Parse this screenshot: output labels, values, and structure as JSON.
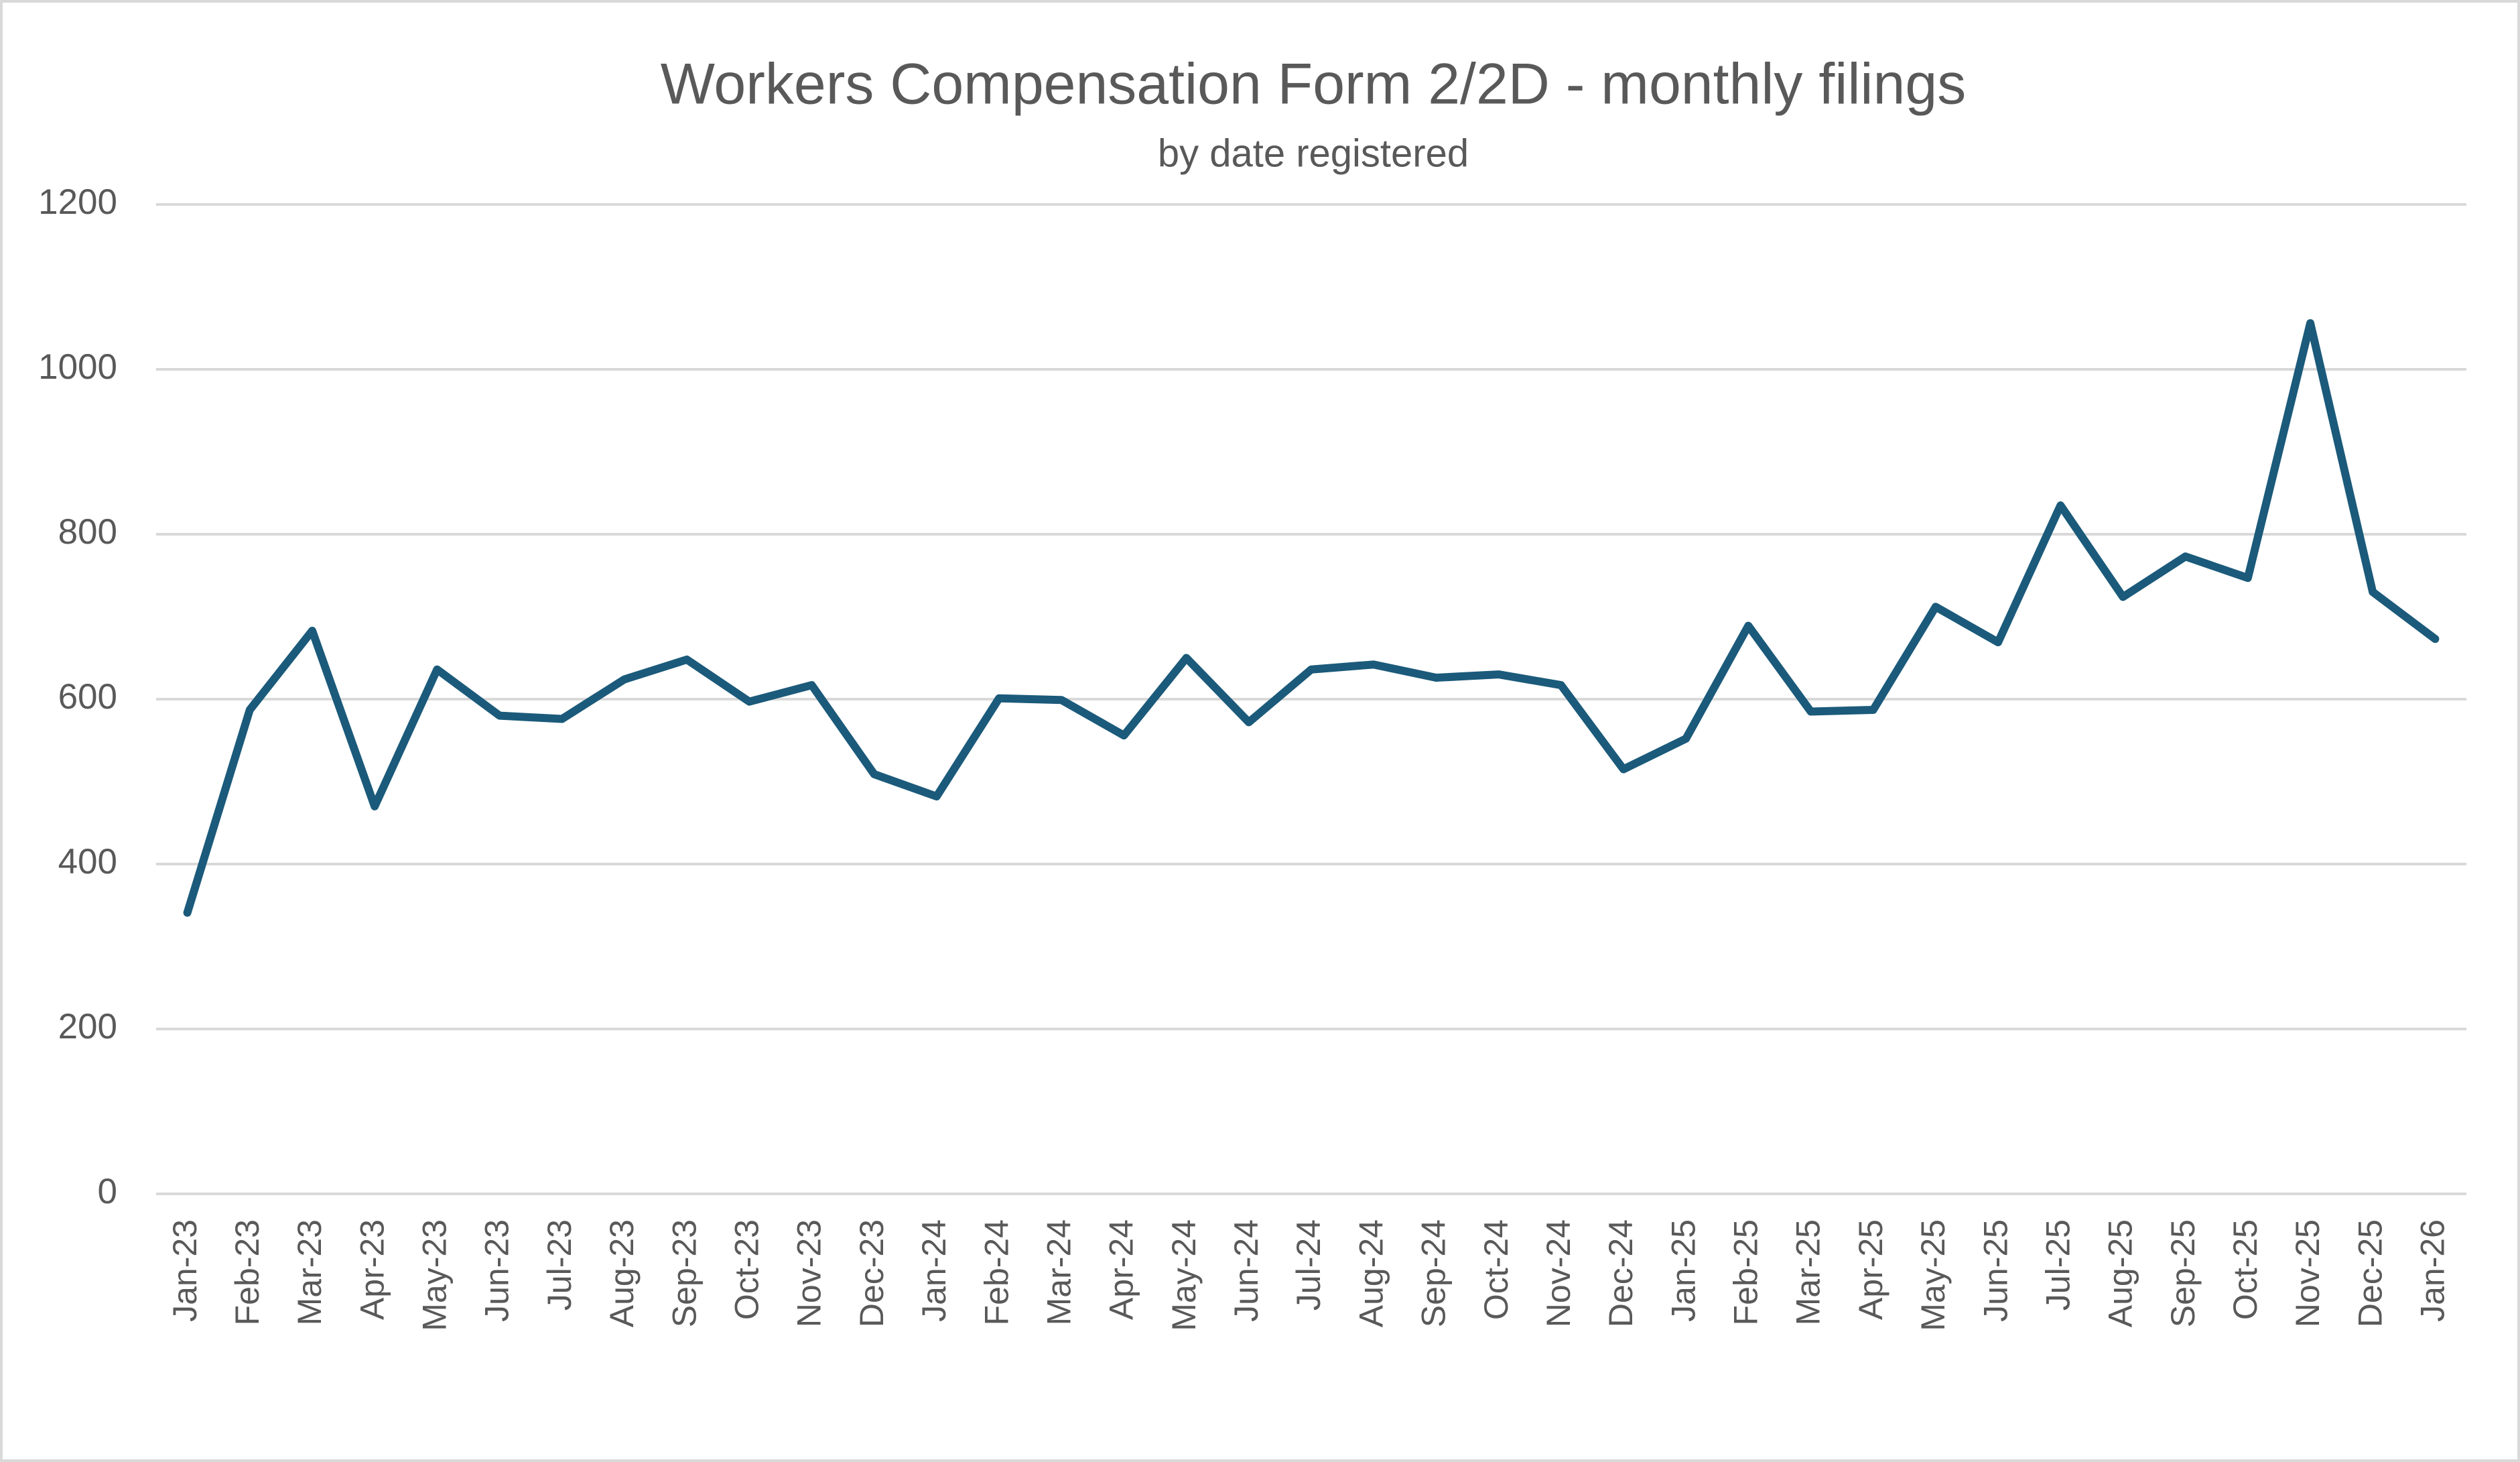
{
  "chart_data": {
    "type": "line",
    "title": "Workers Compensation Form 2/2D - monthly filings",
    "subtitle": "by date registered",
    "categories": [
      "Jan-23",
      "Feb-23",
      "Mar-23",
      "Apr-23",
      "May-23",
      "Jun-23",
      "Jul-23",
      "Aug-23",
      "Sep-23",
      "Oct-23",
      "Nov-23",
      "Dec-23",
      "Jan-24",
      "Feb-24",
      "Mar-24",
      "Apr-24",
      "May-24",
      "Jun-24",
      "Jul-24",
      "Aug-24",
      "Sep-24",
      "Oct-24",
      "Nov-24",
      "Dec-24",
      "Jan-25",
      "Feb-25",
      "Mar-25",
      "Apr-25",
      "May-25",
      "Jun-25",
      "Jul-25",
      "Aug-25",
      "Sep-25",
      "Oct-25",
      "Nov-25",
      "Dec-25",
      "Jan-26"
    ],
    "values": [
      341,
      587,
      683,
      470,
      636,
      580,
      576,
      624,
      648,
      597,
      617,
      509,
      482,
      601,
      599,
      556,
      650,
      572,
      636,
      642,
      626,
      630,
      617,
      515,
      552,
      689,
      585,
      587,
      712,
      669,
      835,
      724,
      773,
      747,
      1056,
      730,
      673
    ],
    "color": "#1b5a7a",
    "ylim": [
      0,
      1200
    ],
    "yticks": [
      0,
      200,
      400,
      600,
      800,
      1000,
      1200
    ],
    "grid": true
  }
}
